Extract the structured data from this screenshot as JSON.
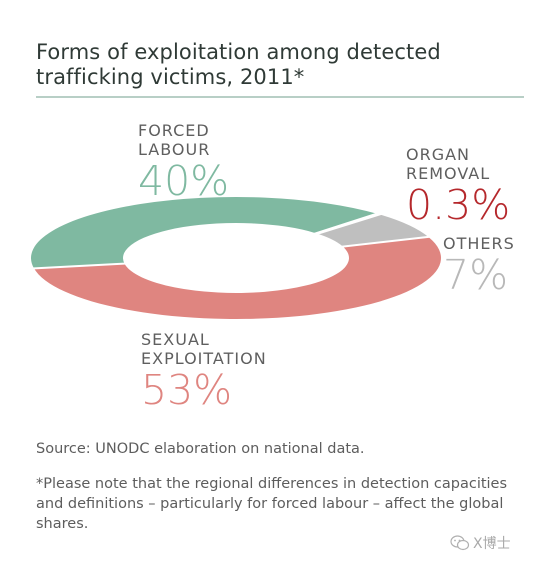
{
  "title_line1": "Forms of exploitation among detected",
  "title_line2": "trafficking victims, 2011*",
  "chart_data": {
    "type": "pie",
    "donut": true,
    "slices": [
      {
        "label_line1": "FORCED",
        "label_line2": "LABOUR",
        "value": 40,
        "display": "40%",
        "color": "#7fb9a1",
        "label_color": "#7fb9a1"
      },
      {
        "label_line1": "ORGAN",
        "label_line2": "REMOVAL",
        "value": 0.3,
        "display": "0.3%",
        "color": "#b5282c",
        "label_color": "#b5282c"
      },
      {
        "label_line1": "OTHERS",
        "label_line2": "",
        "value": 7,
        "display": "7%",
        "color": "#bfbfbf",
        "label_color": "#b8b8b8"
      },
      {
        "label_line1": "SEXUAL",
        "label_line2": "EXPLOITATION",
        "value": 53,
        "display": "53%",
        "color": "#df8580",
        "label_color": "#df8580"
      }
    ]
  },
  "source": "Source: UNODC elaboration on national data.",
  "note": "*Please note that the regional differences in detection capacities and definitions – particularly for forced labour – affect the global shares.",
  "watermark": "X博士",
  "watermark_icon": "wechat-icon"
}
